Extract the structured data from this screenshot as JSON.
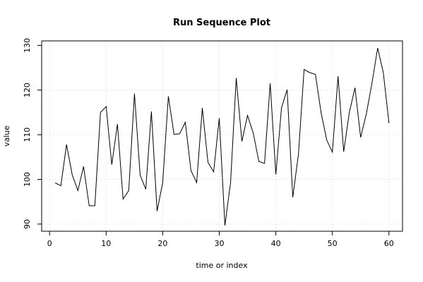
{
  "chart_data": {
    "type": "line",
    "title": "Run Sequence Plot",
    "xlabel": "time or index",
    "ylabel": "value",
    "xlim": [
      -1.4,
      62.4
    ],
    "ylim": [
      88.4,
      131.0
    ],
    "xticks": [
      0,
      10,
      20,
      30,
      40,
      50,
      60
    ],
    "yticks": [
      90,
      100,
      110,
      120,
      130
    ],
    "grid": true,
    "x": [
      1,
      2,
      3,
      4,
      5,
      6,
      7,
      8,
      9,
      10,
      11,
      12,
      13,
      14,
      15,
      16,
      17,
      18,
      19,
      20,
      21,
      22,
      23,
      24,
      25,
      26,
      27,
      28,
      29,
      30,
      31,
      32,
      33,
      34,
      35,
      36,
      37,
      38,
      39,
      40,
      41,
      42,
      43,
      44,
      45,
      46,
      47,
      48,
      49,
      50,
      51,
      52,
      53,
      54,
      55,
      56,
      57,
      58,
      59,
      60
    ],
    "values": [
      99.2,
      98.6,
      107.8,
      101.0,
      97.5,
      102.9,
      94.1,
      94.1,
      115.0,
      116.3,
      103.3,
      112.4,
      95.6,
      97.5,
      119.2,
      101.0,
      97.8,
      115.2,
      92.9,
      99.3,
      118.6,
      110.1,
      110.2,
      112.8,
      102.0,
      99.3,
      116.0,
      103.8,
      101.7,
      113.7,
      89.7,
      99.3,
      122.7,
      108.5,
      114.3,
      110.4,
      104.0,
      103.6,
      121.5,
      101.1,
      116.0,
      120.1,
      96.0,
      105.6,
      124.6,
      123.9,
      123.5,
      114.9,
      108.8,
      106.1,
      123.1,
      106.2,
      115.0,
      120.5,
      109.4,
      114.6,
      121.5,
      129.4,
      123.9,
      112.6
    ]
  }
}
